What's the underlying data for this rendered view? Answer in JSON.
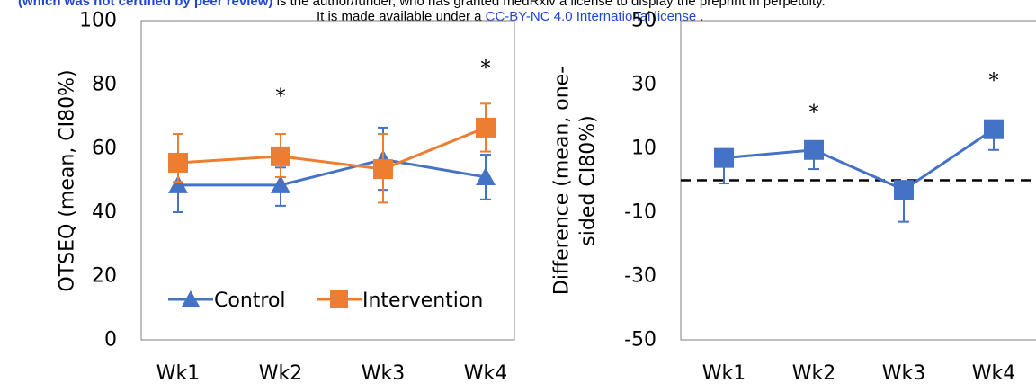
{
  "header": {
    "line1_bold": "(which was not certified by peer review)",
    "line1_rest": " is the author/funder, who has granted medRxiv a license to display the preprint in perpetuity.",
    "line2_prefix": "It is made available under a ",
    "line2_link": "CC-BY-NC 4.0 International license",
    "line2_suffix": " ."
  },
  "colors": {
    "control": "#4472c4",
    "intervention": "#ed7d31",
    "difference": "#4472c4",
    "axis": "#000000"
  },
  "chart_data": [
    {
      "type": "line",
      "title": "",
      "categories": [
        "Wk1",
        "Wk2",
        "Wk3",
        "Wk4"
      ],
      "ylabel": "OTSEQ (mean, CI80%)",
      "xlabel": "",
      "ylim": [
        0,
        100
      ],
      "yticks": [
        "0",
        "20",
        "40",
        "60",
        "80",
        "100"
      ],
      "series": [
        {
          "name": "Control",
          "values": [
            48.5,
            48.5,
            56.5,
            51
          ],
          "err_low": [
            40,
            42,
            47,
            44
          ],
          "err_high": [
            56,
            54,
            66.5,
            58
          ],
          "marker": "triangle",
          "color": "#4472c4"
        },
        {
          "name": "Intervention",
          "values": [
            55.5,
            57.5,
            53.5,
            66.5
          ],
          "err_low": [
            49.5,
            51,
            43,
            59
          ],
          "err_high": [
            64.5,
            64.5,
            64.5,
            74
          ],
          "marker": "square",
          "color": "#ed7d31"
        }
      ],
      "annotations": [
        {
          "label": "*",
          "category": "Wk2",
          "y": 76
        },
        {
          "label": "*",
          "category": "Wk4",
          "y": 85
        }
      ],
      "legend": "bottom-right",
      "grid": false
    },
    {
      "type": "line",
      "title": "",
      "categories": [
        "Wk1",
        "Wk2",
        "Wk3",
        "Wk4"
      ],
      "ylabel_lines": [
        "Difference (mean, one-",
        "sided CI80%)"
      ],
      "xlabel": "",
      "ylim": [
        -50,
        50
      ],
      "yticks": [
        "-50",
        "-30",
        "-10",
        "10",
        "30",
        "50"
      ],
      "reference_line": 0,
      "series": [
        {
          "name": "",
          "values": [
            7,
            9.5,
            -3,
            16
          ],
          "err_low": [
            -1,
            3.5,
            -13,
            9.5
          ],
          "err_high": [
            null,
            null,
            null,
            null
          ],
          "marker": "square",
          "color": "#4472c4"
        }
      ],
      "annotations": [
        {
          "label": "*",
          "category": "Wk2",
          "y": 21
        },
        {
          "label": "*",
          "category": "Wk4",
          "y": 31
        }
      ],
      "grid": false
    }
  ]
}
